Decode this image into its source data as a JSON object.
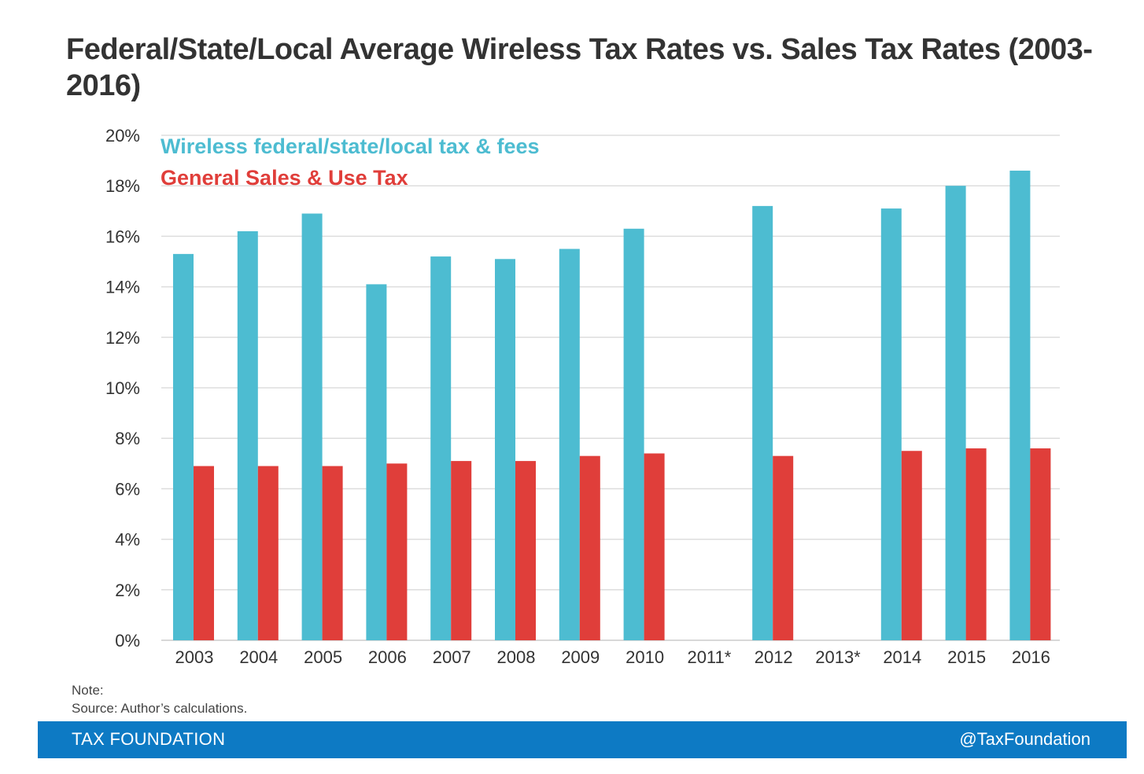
{
  "title": "Federal/State/Local Average Wireless Tax Rates vs. Sales Tax Rates (2003-2016)",
  "chart_data": {
    "type": "bar",
    "categories": [
      "2003",
      "2004",
      "2005",
      "2006",
      "2007",
      "2008",
      "2009",
      "2010",
      "2011*",
      "2012",
      "2013*",
      "2014",
      "2015",
      "2016"
    ],
    "series": [
      {
        "name": "Wireless federal/state/local tax & fees",
        "color": "#4dbcd1",
        "values": [
          15.3,
          16.2,
          16.9,
          14.1,
          15.2,
          15.1,
          15.5,
          16.3,
          null,
          17.2,
          null,
          17.1,
          18.0,
          18.6
        ]
      },
      {
        "name": "General Sales & Use Tax",
        "color": "#e03e3a",
        "values": [
          6.9,
          6.9,
          6.9,
          7.0,
          7.1,
          7.1,
          7.3,
          7.4,
          null,
          7.3,
          null,
          7.5,
          7.6,
          7.6
        ]
      }
    ],
    "yticks": [
      "0%",
      "2%",
      "4%",
      "6%",
      "8%",
      "10%",
      "12%",
      "14%",
      "16%",
      "18%",
      "20%"
    ],
    "ylim": [
      0,
      20
    ],
    "grid": true,
    "legend_position": "top-left"
  },
  "note_label": "Note:",
  "source": "Source: Author’s calculations.",
  "footer": {
    "left": "TAX FOUNDATION",
    "right": "@TaxFoundation",
    "color": "#0d7ac4"
  }
}
